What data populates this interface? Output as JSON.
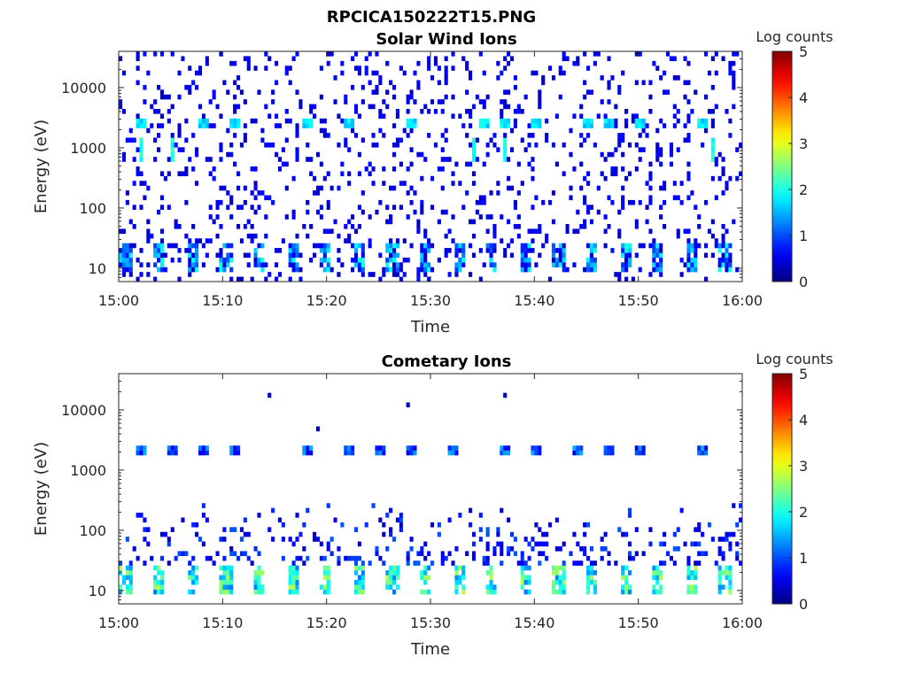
{
  "figure": {
    "title": "RPCICA150222T15.PNG"
  },
  "colorbar": {
    "label": "Log counts",
    "ticks": [
      "0",
      "1",
      "2",
      "3",
      "4",
      "5"
    ],
    "range": [
      0,
      5
    ],
    "colormap": "jet"
  },
  "chart_data": [
    {
      "type": "heatmap",
      "title": "Solar Wind Ions",
      "xlabel": "Time",
      "ylabel": "Energy (eV)",
      "x_ticks": [
        "15:00",
        "15:10",
        "15:20",
        "15:30",
        "15:40",
        "15:50",
        "16:00"
      ],
      "xlim": [
        "15:00",
        "16:00"
      ],
      "y_scale": "log",
      "y_ticks": [
        "10",
        "100",
        "1000",
        "10000"
      ],
      "ylim": [
        6,
        40000
      ],
      "color_scale": "Log counts",
      "color_range": [
        0,
        5
      ],
      "features": {
        "background_level": 0.3,
        "background_density": 0.12,
        "low_energy_bursts": {
          "energy_range": [
            8,
            25
          ],
          "count_range": [
            0.3,
            2.0
          ],
          "period_min": 3.2
        },
        "beam_spots": {
          "energy": 2500,
          "count_range": [
            1.5,
            2.0
          ],
          "times": [
            "15:02",
            "15:08",
            "15:11",
            "15:18",
            "15:22",
            "15:28",
            "15:35",
            "15:37",
            "15:40",
            "15:45",
            "15:47",
            "15:50",
            "15:56"
          ]
        },
        "column_streaks": {
          "energy_range": [
            600,
            1500
          ],
          "count_range": [
            1.8,
            2.2
          ],
          "times": [
            "15:02",
            "15:05",
            "15:34",
            "15:37",
            "15:57"
          ]
        }
      }
    },
    {
      "type": "heatmap",
      "title": "Cometary Ions",
      "xlabel": "Time",
      "ylabel": "Energy (eV)",
      "x_ticks": [
        "15:00",
        "15:10",
        "15:20",
        "15:30",
        "15:40",
        "15:50",
        "16:00"
      ],
      "xlim": [
        "15:00",
        "16:00"
      ],
      "y_scale": "log",
      "y_ticks": [
        "10",
        "100",
        "1000",
        "10000"
      ],
      "ylim": [
        6,
        40000
      ],
      "color_scale": "Log counts",
      "color_range": [
        0,
        5
      ],
      "features": {
        "low_energy_bursts": {
          "energy_range": [
            8,
            25
          ],
          "count_range": [
            1.2,
            2.8
          ],
          "period_min": 3.2
        },
        "mid_energy_scatter": {
          "energy_range": [
            25,
            300
          ],
          "count_range": [
            0.3,
            1.6
          ]
        },
        "beam_spots": {
          "energy": 2200,
          "count_range": [
            0.5,
            1.5
          ],
          "times": [
            "15:02",
            "15:05",
            "15:08",
            "15:11",
            "15:18",
            "15:22",
            "15:25",
            "15:28",
            "15:32",
            "15:37",
            "15:40",
            "15:44",
            "15:47",
            "15:50",
            "15:56"
          ]
        },
        "sparse_high": {
          "energy_range": [
            3000,
            30000
          ],
          "count_level": 0.3
        }
      }
    }
  ]
}
